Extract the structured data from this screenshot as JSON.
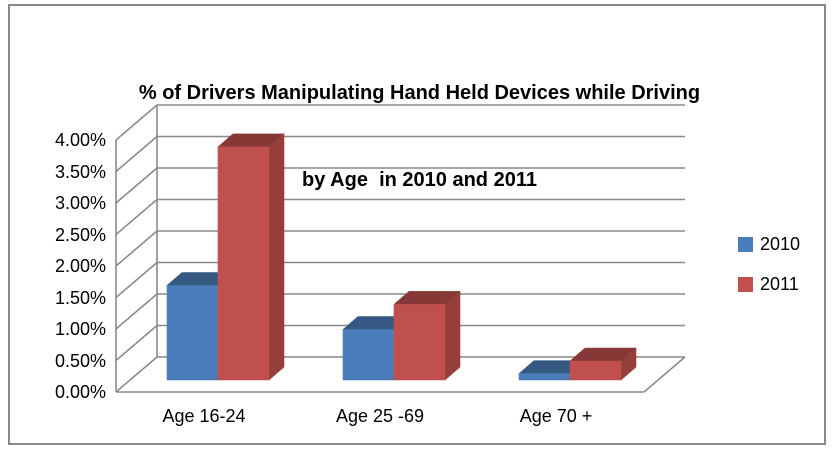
{
  "chart_data": {
    "type": "bar",
    "style": "3d-clustered-column",
    "title": "% of Drivers Manipulating Hand Held Devices while Driving by Age in 2010 and 2011",
    "title_lines": [
      "% of Drivers Manipulating Hand Held Devices while Driving",
      "by Age  in 2010 and 2011"
    ],
    "categories": [
      "Age 16-24",
      "Age 25 -69",
      "Age 70 +"
    ],
    "series": [
      {
        "name": "2010",
        "color": "#4C7DBB",
        "values": [
          1.5,
          0.8,
          0.1
        ]
      },
      {
        "name": "2011",
        "color": "#C0504D",
        "values": [
          3.7,
          1.2,
          0.3
        ]
      }
    ],
    "unit": "percent",
    "ylim": [
      0,
      4
    ],
    "y_tick_step": 0.5,
    "y_ticks": [
      "4.00%",
      "3.50%",
      "3.00%",
      "2.50%",
      "2.00%",
      "1.50%",
      "1.00%",
      "0.50%",
      "0.00%"
    ],
    "xlabel": "",
    "ylabel": "",
    "grid": true,
    "grid_color": "#8A8A8A",
    "legend_position": "right"
  }
}
